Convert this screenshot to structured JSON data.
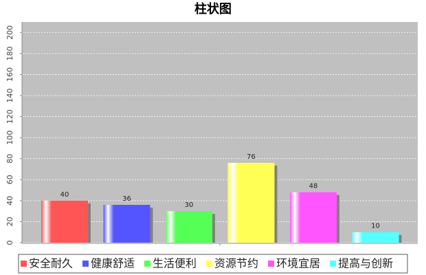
{
  "chart_data": {
    "type": "bar",
    "title": "柱状图",
    "series": [
      {
        "name": "安全耐久",
        "color": "#ff5555",
        "values": [
          40
        ]
      },
      {
        "name": "健康舒适",
        "color": "#5555ff",
        "values": [
          36
        ]
      },
      {
        "name": "生活便利",
        "color": "#55ff55",
        "values": [
          30
        ]
      },
      {
        "name": "资源节约",
        "color": "#ffff55",
        "values": [
          76
        ]
      },
      {
        "name": "环境宜居",
        "color": "#ff55ff",
        "values": [
          48
        ]
      },
      {
        "name": "提高与创新",
        "color": "#55ffff",
        "values": [
          10
        ]
      }
    ],
    "ylim": [
      0,
      210
    ],
    "yticks": [
      0,
      20,
      40,
      60,
      80,
      100,
      120,
      140,
      160,
      180,
      200
    ],
    "grid": true,
    "legend": "bottom",
    "plot_background": "#c0c0c0"
  }
}
